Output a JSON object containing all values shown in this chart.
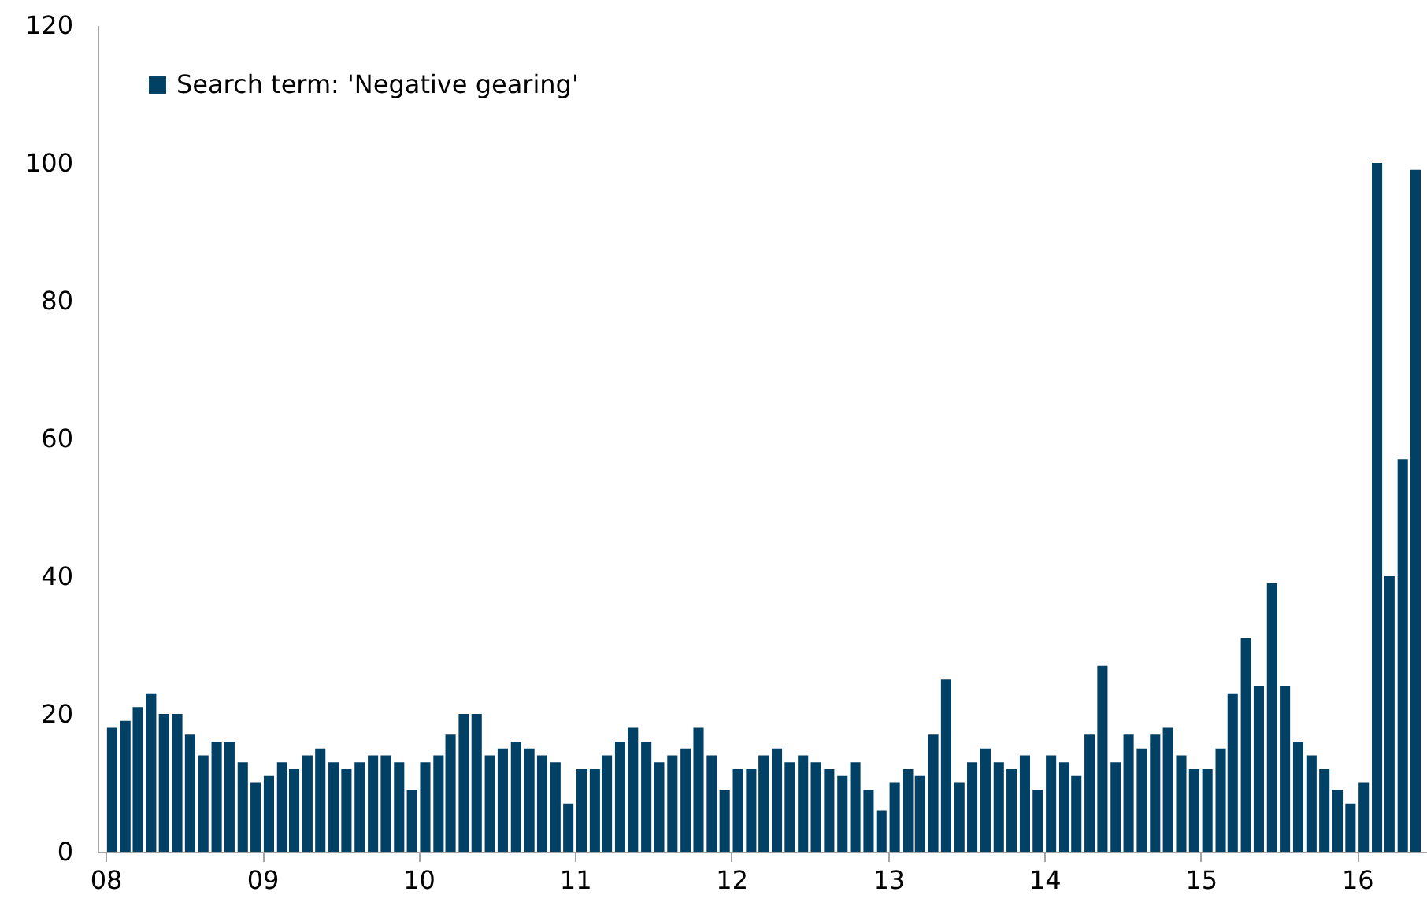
{
  "chart_data": {
    "type": "bar",
    "x": [
      "2008-01",
      "2008-02",
      "2008-03",
      "2008-04",
      "2008-05",
      "2008-06",
      "2008-07",
      "2008-08",
      "2008-09",
      "2008-10",
      "2008-11",
      "2008-12",
      "2009-01",
      "2009-02",
      "2009-03",
      "2009-04",
      "2009-05",
      "2009-06",
      "2009-07",
      "2009-08",
      "2009-09",
      "2009-10",
      "2009-11",
      "2009-12",
      "2010-01",
      "2010-02",
      "2010-03",
      "2010-04",
      "2010-05",
      "2010-06",
      "2010-07",
      "2010-08",
      "2010-09",
      "2010-10",
      "2010-11",
      "2010-12",
      "2011-01",
      "2011-02",
      "2011-03",
      "2011-04",
      "2011-05",
      "2011-06",
      "2011-07",
      "2011-08",
      "2011-09",
      "2011-10",
      "2011-11",
      "2011-12",
      "2012-01",
      "2012-02",
      "2012-03",
      "2012-04",
      "2012-05",
      "2012-06",
      "2012-07",
      "2012-08",
      "2012-09",
      "2012-10",
      "2012-11",
      "2012-12",
      "2013-01",
      "2013-02",
      "2013-03",
      "2013-04",
      "2013-05",
      "2013-06",
      "2013-07",
      "2013-08",
      "2013-09",
      "2013-10",
      "2013-11",
      "2013-12",
      "2014-01",
      "2014-02",
      "2014-03",
      "2014-04",
      "2014-05",
      "2014-06",
      "2014-07",
      "2014-08",
      "2014-09",
      "2014-10",
      "2014-11",
      "2014-12",
      "2015-01",
      "2015-02",
      "2015-03",
      "2015-04",
      "2015-05",
      "2015-06",
      "2015-07",
      "2015-08",
      "2015-09",
      "2015-10",
      "2015-11",
      "2015-12",
      "2016-01",
      "2016-02",
      "2016-03",
      "2016-04",
      "2016-05"
    ],
    "series": [
      {
        "name": "Search term: 'Negative gearing'",
        "color": "#004165",
        "values": [
          18,
          19,
          21,
          23,
          20,
          20,
          17,
          14,
          16,
          16,
          13,
          10,
          11,
          13,
          12,
          14,
          15,
          13,
          12,
          13,
          14,
          14,
          13,
          9,
          13,
          14,
          17,
          20,
          20,
          14,
          15,
          16,
          15,
          14,
          13,
          7,
          12,
          12,
          14,
          16,
          18,
          16,
          13,
          14,
          15,
          18,
          14,
          9,
          12,
          12,
          14,
          15,
          13,
          14,
          13,
          12,
          11,
          13,
          9,
          6,
          10,
          12,
          11,
          17,
          25,
          10,
          13,
          15,
          13,
          12,
          14,
          9,
          14,
          13,
          11,
          17,
          27,
          13,
          17,
          15,
          17,
          18,
          14,
          12,
          12,
          15,
          23,
          31,
          24,
          39,
          24,
          16,
          14,
          12,
          9,
          7,
          10,
          100,
          40,
          57,
          99
        ]
      }
    ],
    "xlim": [
      "2008-01",
      "2016-06"
    ],
    "xticks": [
      {
        "value": "2008-01",
        "label": "08"
      },
      {
        "value": "2009-01",
        "label": "09"
      },
      {
        "value": "2010-01",
        "label": "10"
      },
      {
        "value": "2011-01",
        "label": "11"
      },
      {
        "value": "2012-01",
        "label": "12"
      },
      {
        "value": "2013-01",
        "label": "13"
      },
      {
        "value": "2014-01",
        "label": "14"
      },
      {
        "value": "2015-01",
        "label": "15"
      },
      {
        "value": "2016-01",
        "label": "16"
      }
    ],
    "ylim": [
      0,
      120
    ],
    "yticks": [
      0,
      20,
      40,
      60,
      80,
      100,
      120
    ],
    "legend": "top left"
  }
}
